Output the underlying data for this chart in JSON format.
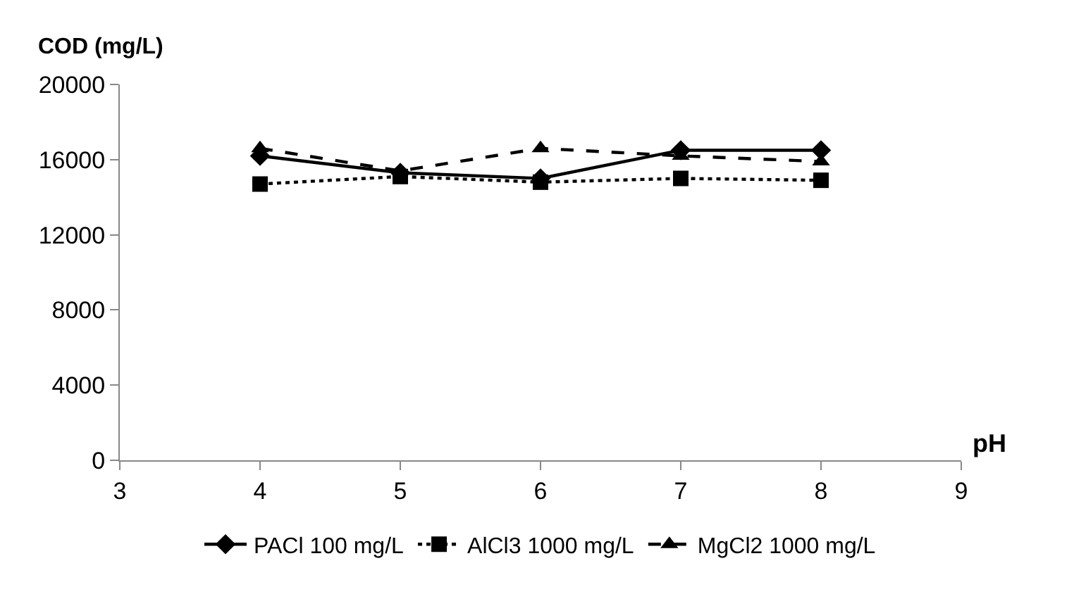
{
  "chart_data": {
    "type": "line",
    "ylabel": "COD (mg/L)",
    "xlabel": "pH",
    "x": [
      4,
      5,
      6,
      7,
      8
    ],
    "series": [
      {
        "name": "PACl 100 mg/L",
        "color": "#000000",
        "values": [
          16200,
          15300,
          15000,
          16500,
          16500
        ],
        "marker": "diamond",
        "line_style": "solid"
      },
      {
        "name": "AlCl3 1000 mg/L",
        "color": "#000000",
        "values": [
          14700,
          15100,
          14800,
          15000,
          14900
        ],
        "marker": "square",
        "line_style": "dotted"
      },
      {
        "name": "MgCl2 1000 mg/L",
        "color": "#000000",
        "values": [
          16600,
          15400,
          16600,
          16200,
          15900
        ],
        "marker": "triangle",
        "line_style": "dashed"
      }
    ],
    "xlim": [
      3,
      9
    ],
    "xticks": [
      3,
      4,
      5,
      6,
      7,
      8,
      9
    ],
    "ylim": [
      0,
      20000
    ],
    "yticks": [
      0,
      4000,
      8000,
      12000,
      16000,
      20000
    ],
    "legend": "bottom"
  }
}
